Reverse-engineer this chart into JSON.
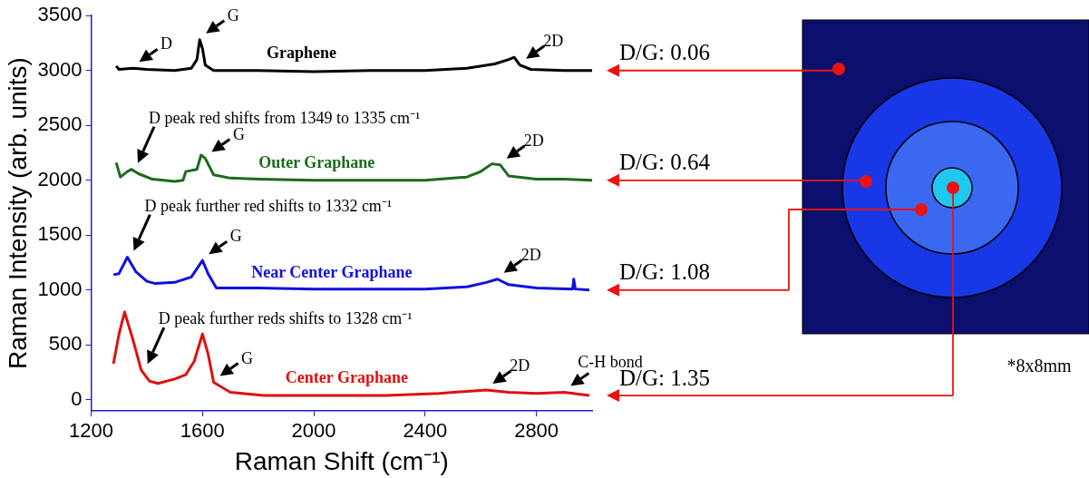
{
  "chart_data": {
    "type": "line",
    "xlabel": "Raman Shift (cm⁻¹)",
    "ylabel": "Raman Intensity (arb. units)",
    "xlim": [
      1200,
      3000
    ],
    "xticks": [
      1200,
      1600,
      2000,
      2400,
      2800
    ],
    "ylim": [
      -100,
      3500
    ],
    "yticks": [
      0,
      500,
      1000,
      1500,
      2000,
      2500,
      3000,
      3500
    ],
    "grid": false,
    "legend": false,
    "marker": "none",
    "line_style": "solid",
    "series": [
      {
        "name": "Graphene",
        "color": "#000000",
        "x": [
          1290,
          1300,
          1350,
          1400,
          1500,
          1560,
          1580,
          1590,
          1600,
          1610,
          1640,
          1800,
          2000,
          2200,
          2400,
          2550,
          2650,
          2700,
          2720,
          2740,
          2780,
          2900,
          3000
        ],
        "values": [
          3040,
          3010,
          3020,
          3010,
          3000,
          3020,
          3100,
          3280,
          3200,
          3050,
          3000,
          3000,
          2990,
          3000,
          3000,
          3020,
          3060,
          3100,
          3120,
          3050,
          3010,
          3000,
          3000
        ]
      },
      {
        "name": "Outer Graphane",
        "color": "#1a6b1a",
        "x": [
          1290,
          1305,
          1330,
          1345,
          1370,
          1420,
          1500,
          1530,
          1540,
          1580,
          1595,
          1610,
          1640,
          1700,
          1800,
          2000,
          2200,
          2400,
          2550,
          2600,
          2640,
          2670,
          2700,
          2800,
          2900,
          3000
        ],
        "values": [
          2160,
          2030,
          2080,
          2100,
          2060,
          2010,
          1990,
          2000,
          2080,
          2100,
          2230,
          2200,
          2050,
          2020,
          2010,
          2000,
          2000,
          2000,
          2030,
          2080,
          2150,
          2140,
          2040,
          2010,
          2010,
          2000
        ]
      },
      {
        "name": "Near Center Graphane",
        "color": "#1010e0",
        "x": [
          1280,
          1300,
          1330,
          1360,
          1400,
          1430,
          1500,
          1560,
          1600,
          1620,
          1650,
          1800,
          2000,
          2200,
          2400,
          2550,
          2620,
          2660,
          2700,
          2800,
          2930,
          2934,
          2940,
          2990
        ],
        "values": [
          1140,
          1150,
          1300,
          1170,
          1080,
          1060,
          1070,
          1120,
          1270,
          1150,
          1020,
          1020,
          1010,
          1010,
          1010,
          1030,
          1070,
          1100,
          1050,
          1020,
          1010,
          1100,
          1010,
          1000
        ]
      },
      {
        "name": "Center Graphane",
        "color": "#e01010",
        "x": [
          1280,
          1300,
          1320,
          1350,
          1380,
          1410,
          1440,
          1500,
          1540,
          1570,
          1600,
          1620,
          1640,
          1700,
          1820,
          2000,
          2260,
          2450,
          2620,
          2700,
          2800,
          2900,
          2990
        ],
        "values": [
          330,
          600,
          800,
          550,
          270,
          170,
          150,
          190,
          230,
          350,
          600,
          420,
          160,
          70,
          40,
          40,
          40,
          60,
          90,
          70,
          60,
          70,
          40
        ]
      }
    ],
    "annotations": [
      {
        "text": "D",
        "x": 1350,
        "y": 3020
      },
      {
        "text": "G",
        "x": 1590,
        "y": 3280
      },
      {
        "text": "2D",
        "x": 2740,
        "y": 3050
      },
      {
        "text": "D peak red shifts from 1349 to 1335 cm⁻¹",
        "x": 1345,
        "y": 2100
      },
      {
        "text": "G",
        "x": 1610,
        "y": 2200
      },
      {
        "text": "2D",
        "x": 2670,
        "y": 2140
      },
      {
        "text": "D peak further red shifts to 1332 cm⁻¹",
        "x": 1330,
        "y": 1300
      },
      {
        "text": "G",
        "x": 1600,
        "y": 1270
      },
      {
        "text": "2D",
        "x": 2660,
        "y": 1100
      },
      {
        "text": "D peak further reds shifts to 1328 cm⁻¹",
        "x": 1380,
        "y": 270
      },
      {
        "text": "G",
        "x": 1640,
        "y": 160
      },
      {
        "text": "2D",
        "x": 2620,
        "y": 90
      },
      {
        "text": "C-H bond",
        "x": 2900,
        "y": 70
      },
      {
        "text": "D/G: 0.06",
        "x": 3000,
        "y": 3000
      },
      {
        "text": "D/G: 0.64",
        "x": 3000,
        "y": 2000
      },
      {
        "text": "D/G: 1.08",
        "x": 3000,
        "y": 1000
      },
      {
        "text": "D/G: 1.35",
        "x": 2990,
        "y": 40
      },
      "*8x8mm"
    ]
  }
}
